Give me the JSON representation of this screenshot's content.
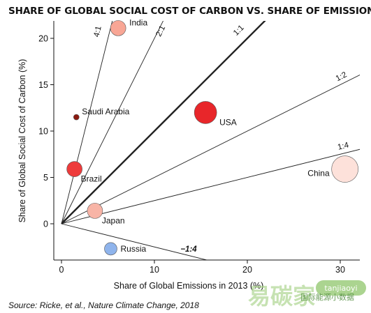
{
  "title": "SHARE OF GLOBAL SOCIAL COST OF CARBON VS. SHARE OF EMISSIONS",
  "source": "Source: Ricke, et al., Nature Climate Change, 2018",
  "watermark": {
    "logo_text": "易碳家",
    "handle": "tanjiaoyi",
    "account": "国际能源小数据"
  },
  "colors": {
    "axis": "#111111",
    "ratio_line": "#222222",
    "label": "#111111"
  },
  "chart_data": {
    "type": "scatter",
    "title": "SHARE OF GLOBAL SOCIAL COST OF CARBON VS. SHARE OF EMISSIONS",
    "xlabel": "Share of Global Emissions in 2013 (%)",
    "ylabel": "Share of Global Social Cost of Carbon (%)",
    "xlim": [
      -1,
      32
    ],
    "ylim": [
      -4,
      22.5
    ],
    "xticks": [
      0,
      10,
      20,
      30
    ],
    "yticks": [
      0,
      5,
      10,
      15,
      20
    ],
    "grid": false,
    "points": [
      {
        "label": "India",
        "x": 6.1,
        "y": 21.1,
        "color": "#f8a695",
        "size": "medium"
      },
      {
        "label": "Saudi Arabia",
        "x": 1.6,
        "y": 11.5,
        "color": "#8b1a10",
        "size": "tiny"
      },
      {
        "label": "USA",
        "x": 15.5,
        "y": 12.0,
        "color": "#e8262a",
        "size": "large"
      },
      {
        "label": "Brazil",
        "x": 1.4,
        "y": 5.9,
        "color": "#ee3b3b",
        "size": "medium"
      },
      {
        "label": "China",
        "x": 30.5,
        "y": 5.9,
        "color": "#fde1da",
        "size": "xlarge"
      },
      {
        "label": "Japan",
        "x": 3.6,
        "y": 1.4,
        "color": "#f8b4a6",
        "size": "medium"
      },
      {
        "label": "Russia",
        "x": 5.3,
        "y": -2.7,
        "color": "#8fb4ec",
        "size": "small"
      }
    ],
    "reference_lines": [
      {
        "label": "4:1",
        "ratio": 4,
        "style": "thin"
      },
      {
        "label": "2:1",
        "ratio": 2,
        "style": "thin"
      },
      {
        "label": "1:1",
        "ratio": 1,
        "style": "thick"
      },
      {
        "label": "1:2",
        "ratio": 0.5,
        "style": "thin"
      },
      {
        "label": "1:4",
        "ratio": 0.25,
        "style": "thin"
      },
      {
        "label": "−1:4",
        "ratio": -0.25,
        "style": "thin"
      }
    ]
  }
}
